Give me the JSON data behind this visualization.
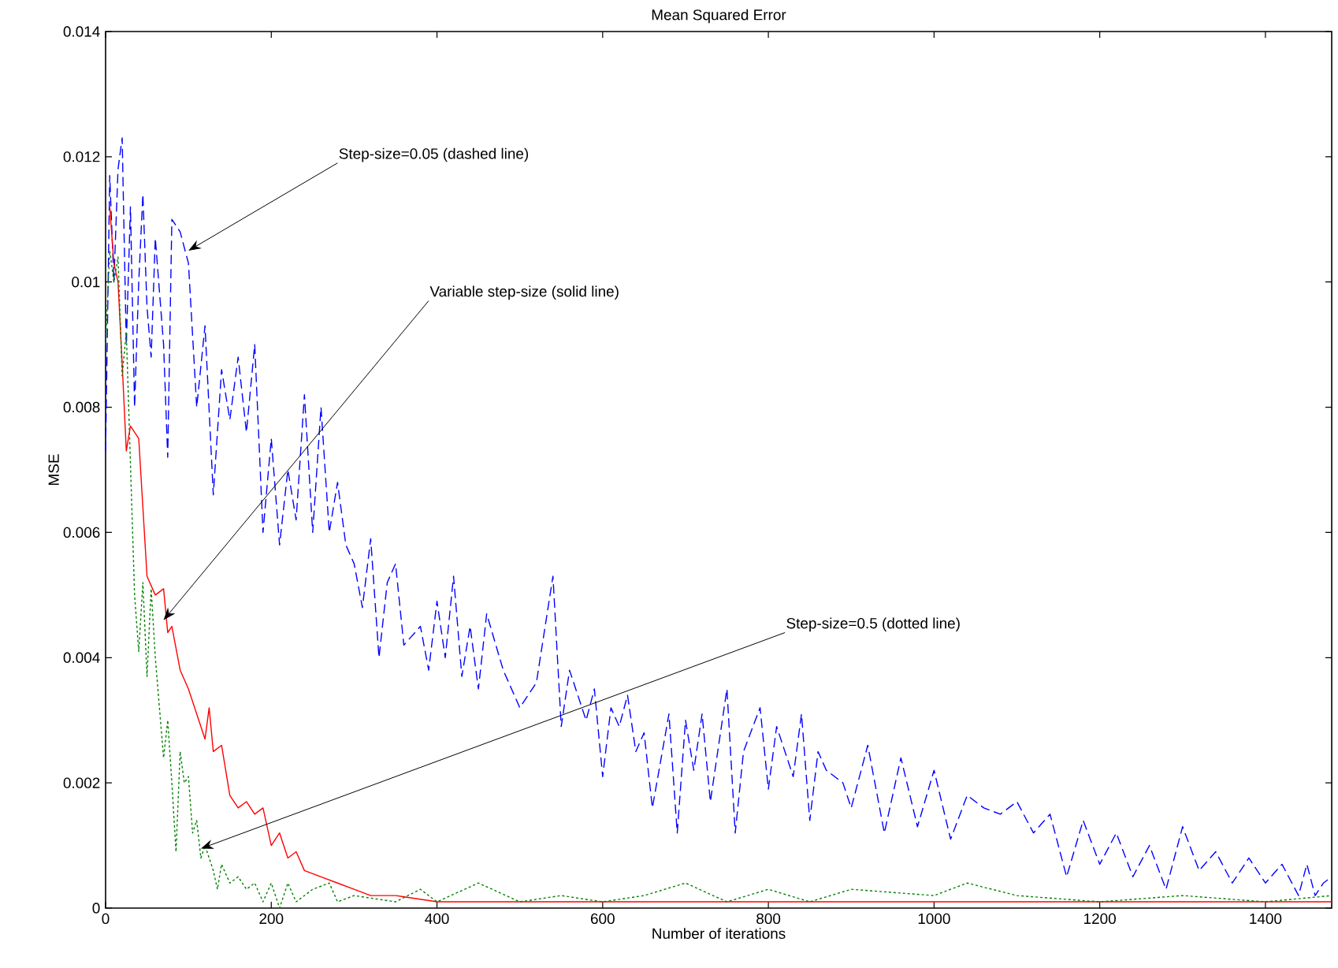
{
  "chart_data": {
    "type": "line",
    "title": "Mean Squared Error",
    "xlabel": "Number of iterations",
    "ylabel": "MSE",
    "xlim": [
      0,
      1480
    ],
    "ylim": [
      0,
      0.014
    ],
    "xticks": [
      0,
      200,
      400,
      600,
      800,
      1000,
      1200,
      1400
    ],
    "yticks": [
      0,
      0.002,
      0.004,
      0.006,
      0.008,
      0.01,
      0.012,
      0.014
    ],
    "grid": false,
    "marker": "none",
    "series": [
      {
        "color": "#0000ff",
        "line_style": "dashed",
        "x": [
          0,
          5,
          10,
          15,
          20,
          25,
          30,
          35,
          40,
          45,
          50,
          55,
          60,
          70,
          75,
          80,
          90,
          100,
          110,
          120,
          130,
          140,
          150,
          160,
          170,
          180,
          190,
          200,
          210,
          220,
          230,
          240,
          250,
          260,
          270,
          280,
          290,
          300,
          310,
          320,
          330,
          340,
          350,
          360,
          380,
          390,
          400,
          410,
          420,
          430,
          440,
          450,
          460,
          480,
          500,
          520,
          540,
          550,
          560,
          580,
          590,
          600,
          610,
          620,
          630,
          640,
          650,
          660,
          680,
          690,
          700,
          710,
          720,
          730,
          740,
          750,
          760,
          770,
          790,
          800,
          810,
          830,
          840,
          850,
          860,
          870,
          890,
          900,
          920,
          940,
          960,
          980,
          1000,
          1020,
          1040,
          1060,
          1080,
          1100,
          1120,
          1140,
          1160,
          1180,
          1200,
          1220,
          1240,
          1260,
          1280,
          1300,
          1320,
          1340,
          1360,
          1380,
          1400,
          1420,
          1440,
          1450,
          1460,
          1470,
          1480
        ],
        "values": [
          0.0073,
          0.0117,
          0.01,
          0.0118,
          0.0123,
          0.009,
          0.0112,
          0.008,
          0.01,
          0.0114,
          0.0096,
          0.0088,
          0.0107,
          0.009,
          0.0072,
          0.011,
          0.0108,
          0.0103,
          0.008,
          0.0093,
          0.0066,
          0.0086,
          0.0078,
          0.0088,
          0.0076,
          0.009,
          0.006,
          0.0075,
          0.0058,
          0.007,
          0.0062,
          0.0082,
          0.006,
          0.008,
          0.006,
          0.0068,
          0.0058,
          0.0055,
          0.0048,
          0.0059,
          0.004,
          0.0052,
          0.0055,
          0.0042,
          0.0045,
          0.0038,
          0.0049,
          0.004,
          0.0053,
          0.0037,
          0.0045,
          0.0035,
          0.0047,
          0.0038,
          0.0032,
          0.0036,
          0.0053,
          0.0029,
          0.0038,
          0.003,
          0.0035,
          0.0021,
          0.0032,
          0.0029,
          0.0034,
          0.0025,
          0.0028,
          0.0016,
          0.0031,
          0.0012,
          0.003,
          0.0022,
          0.0031,
          0.0017,
          0.0026,
          0.0035,
          0.0012,
          0.0025,
          0.0032,
          0.0019,
          0.0029,
          0.0021,
          0.0031,
          0.0014,
          0.0025,
          0.0022,
          0.002,
          0.0016,
          0.0026,
          0.0012,
          0.0024,
          0.0013,
          0.0022,
          0.0011,
          0.0018,
          0.0016,
          0.0015,
          0.0017,
          0.0012,
          0.0015,
          0.0005,
          0.0014,
          0.0007,
          0.0012,
          0.0005,
          0.001,
          0.0003,
          0.0013,
          0.0006,
          0.0009,
          0.0004,
          0.0008,
          0.0004,
          0.0007,
          0.0002,
          0.0007,
          0.0002,
          0.0004,
          0.0005
        ]
      },
      {
        "color": "#ff0000",
        "line_style": "solid",
        "x": [
          5,
          10,
          15,
          20,
          25,
          30,
          40,
          50,
          60,
          70,
          75,
          80,
          90,
          100,
          110,
          120,
          125,
          130,
          140,
          150,
          160,
          170,
          180,
          190,
          200,
          210,
          220,
          230,
          240,
          260,
          280,
          300,
          320,
          350,
          400,
          500,
          600,
          800,
          1000,
          1200,
          1480
        ],
        "values": [
          0.0112,
          0.0103,
          0.01,
          0.0087,
          0.0073,
          0.0077,
          0.0075,
          0.0053,
          0.005,
          0.0051,
          0.0044,
          0.0045,
          0.0038,
          0.0035,
          0.0031,
          0.0027,
          0.0032,
          0.0025,
          0.0026,
          0.0018,
          0.0016,
          0.0017,
          0.0015,
          0.0016,
          0.001,
          0.0012,
          0.0008,
          0.0009,
          0.0006,
          0.0005,
          0.0004,
          0.0003,
          0.0002,
          0.0002,
          0.0001,
          0.0001,
          0.0001,
          0.0001,
          0.0001,
          0.0001,
          0.0001
        ]
      },
      {
        "color": "#008000",
        "line_style": "dotted",
        "x": [
          0,
          5,
          10,
          15,
          20,
          25,
          30,
          35,
          40,
          45,
          50,
          55,
          60,
          70,
          75,
          80,
          85,
          90,
          95,
          100,
          105,
          110,
          115,
          120,
          130,
          135,
          140,
          150,
          160,
          170,
          180,
          190,
          200,
          210,
          220,
          230,
          250,
          270,
          280,
          300,
          350,
          380,
          400,
          450,
          500,
          550,
          600,
          650,
          700,
          750,
          800,
          850,
          900,
          1000,
          1040,
          1100,
          1200,
          1300,
          1400,
          1480
        ],
        "values": [
          0.009,
          0.0105,
          0.01,
          0.0104,
          0.0085,
          0.0092,
          0.0071,
          0.005,
          0.0041,
          0.0052,
          0.0037,
          0.0051,
          0.004,
          0.0024,
          0.003,
          0.002,
          0.0009,
          0.0025,
          0.002,
          0.0021,
          0.0012,
          0.0014,
          0.0008,
          0.001,
          0.0006,
          0.0003,
          0.0007,
          0.0004,
          0.0005,
          0.0003,
          0.0004,
          0.0001,
          0.0004,
          0.0,
          0.0004,
          0.0001,
          0.0003,
          0.0004,
          0.0001,
          0.0002,
          0.0001,
          0.0003,
          0.0001,
          0.0004,
          0.0001,
          0.0002,
          0.0001,
          0.0002,
          0.0004,
          0.0001,
          0.0003,
          0.0001,
          0.0003,
          0.0002,
          0.0004,
          0.0002,
          0.0001,
          0.0002,
          0.0001,
          0.0002
        ]
      }
    ],
    "annotations": [
      {
        "text": "Step-size=0.05 (dashed line)",
        "x": 100,
        "y": 0.0105
      },
      {
        "text": "Variable step-size (solid line)",
        "x": 70,
        "y": 0.0046
      },
      "Step-size=0.5 (dotted line)"
    ]
  }
}
